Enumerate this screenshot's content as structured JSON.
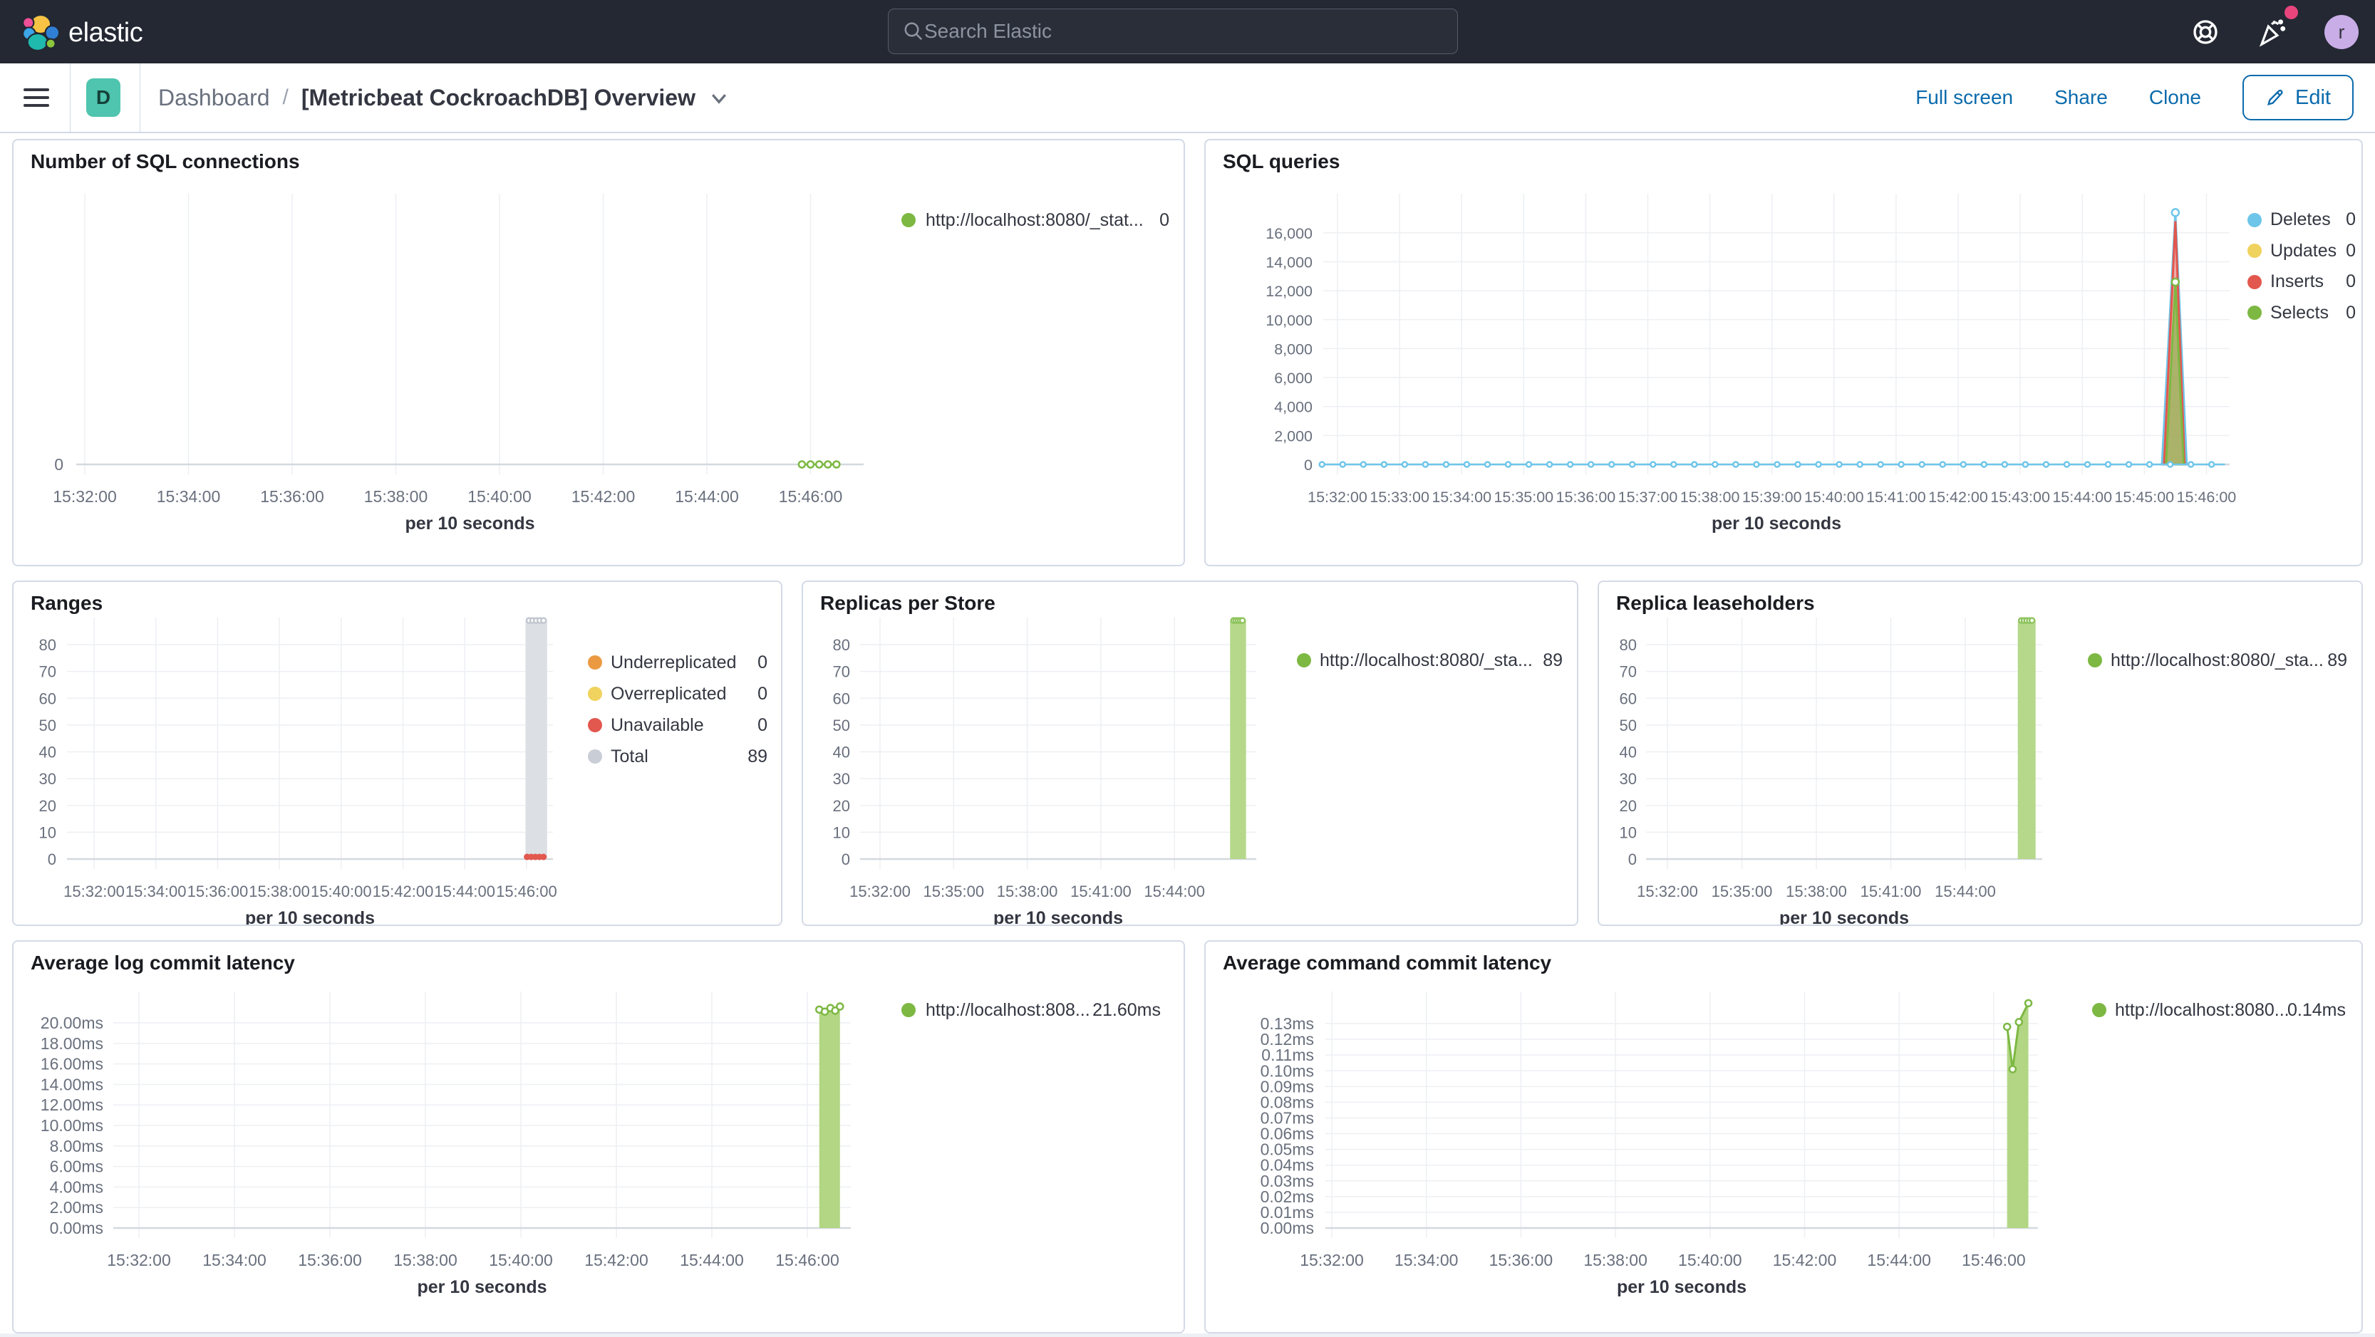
{
  "header": {
    "logo_text": "elastic",
    "search_placeholder": "Search Elastic",
    "avatar_initial": "r"
  },
  "toolbar": {
    "badge_letter": "D",
    "breadcrumb_root": "Dashboard",
    "breadcrumb_separator": "/",
    "title": "[Metricbeat CockroachDB] Overview",
    "actions": [
      "Full screen",
      "Share",
      "Clone"
    ],
    "edit_label": "Edit"
  },
  "colors": {
    "header_bg": "#232833",
    "panel_border": "#d3dae6",
    "link_blue": "#0b6bac",
    "badge_teal": "#4fc4ae",
    "notification_pink": "#e8457c",
    "avatar_purple": "#c9ade6",
    "series_green": "#7db843",
    "series_blue": "#6ec5ea",
    "series_red": "#e2574e",
    "series_yellow": "#f0d25e",
    "series_orange": "#eb9a42",
    "series_gray": "#c9cdd5"
  },
  "chart_data": [
    {
      "title": "Number of SQL connections",
      "type": "line",
      "x_axis_title": "per 10 seconds",
      "x_ticks": [
        "15:32:00",
        "15:34:00",
        "15:36:00",
        "15:38:00",
        "15:40:00",
        "15:42:00",
        "15:44:00",
        "15:46:00"
      ],
      "x_tick_step_s": 120,
      "y_plot_max": 1,
      "y_ticks": [
        [
          0,
          "0"
        ]
      ],
      "series": [
        {
          "name": "http://localhost:8080/_stat...",
          "color": "#7db843",
          "draw": "dotline",
          "points": [
            [
              830,
              0
            ],
            [
              840,
              0
            ],
            [
              850,
              0
            ],
            [
              860,
              0
            ],
            [
              870,
              0
            ]
          ]
        }
      ],
      "legend": [
        {
          "label": "http://localhost:8080/_stat...",
          "value": "0",
          "color": "#7db843"
        }
      ]
    },
    {
      "title": "SQL queries",
      "type": "line",
      "x_axis_title": "per 10 seconds",
      "x_ticks": [
        "15:32:00",
        "15:33:00",
        "15:34:00",
        "15:35:00",
        "15:36:00",
        "15:37:00",
        "15:38:00",
        "15:39:00",
        "15:40:00",
        "15:41:00",
        "15:42:00",
        "15:43:00",
        "15:44:00",
        "15:45:00",
        "15:46:00"
      ],
      "x_tick_step_s": 60,
      "y_plot_max": 18700,
      "y_ticks": [
        [
          0,
          "0"
        ],
        [
          2000,
          "2,000"
        ],
        [
          4000,
          "4,000"
        ],
        [
          6000,
          "6,000"
        ],
        [
          8000,
          "8,000"
        ],
        [
          10000,
          "10,000"
        ],
        [
          12000,
          "12,000"
        ],
        [
          14000,
          "14,000"
        ],
        [
          16000,
          "16,000"
        ]
      ],
      "series": [
        {
          "name": "Deletes",
          "color": "#6ec5ea",
          "draw": "spike",
          "fill": "none",
          "points": [
            [
              797,
              0
            ],
            [
              810,
              17400
            ],
            [
              821,
              0
            ]
          ],
          "markers": [
            [
              810,
              17400
            ]
          ]
        },
        {
          "name": "Inserts",
          "color": "#e2574e",
          "draw": "spike",
          "fill": "rgba(226,87,78,0.5)",
          "points": [
            [
              799,
              0
            ],
            [
              810,
              16800
            ],
            [
              819,
              0
            ]
          ]
        },
        {
          "name": "Selects",
          "color": "#7db843",
          "draw": "spike",
          "fill": "rgba(125,184,67,0.6)",
          "points": [
            [
              801,
              0
            ],
            [
              810,
              12600
            ],
            [
              818,
              0
            ]
          ],
          "markers": [
            [
              810,
              12600
            ]
          ]
        },
        {
          "name": "Deletes",
          "color": "#6ec5ea",
          "draw": "zeroline",
          "value": 0,
          "s_range": [
            -15,
            858
          ],
          "marker_step": 20
        }
      ],
      "legend": [
        {
          "label": "Deletes",
          "value": "0",
          "color": "#6ec5ea"
        },
        {
          "label": "Updates",
          "value": "0",
          "color": "#f0d25e"
        },
        {
          "label": "Inserts",
          "value": "0",
          "color": "#e2574e"
        },
        {
          "label": "Selects",
          "value": "0",
          "color": "#7db843"
        }
      ]
    },
    {
      "title": "Ranges",
      "type": "bar",
      "x_axis_title": "per 10 seconds",
      "x_ticks": [
        "15:32:00",
        "15:34:00",
        "15:36:00",
        "15:38:00",
        "15:40:00",
        "15:42:00",
        "15:44:00",
        "15:46:00"
      ],
      "x_tick_step_s": 120,
      "y_plot_max": 90.1,
      "y_ticks": [
        [
          0,
          "0"
        ],
        [
          10,
          "10"
        ],
        [
          20,
          "20"
        ],
        [
          30,
          "30"
        ],
        [
          40,
          "40"
        ],
        [
          50,
          "50"
        ],
        [
          60,
          "60"
        ],
        [
          70,
          "70"
        ],
        [
          80,
          "80"
        ]
      ],
      "series": [
        {
          "name": "Total",
          "color": "#c2c6ce",
          "draw": "bar",
          "fill": "#dcdfe4",
          "s_range": [
            838,
            880
          ],
          "value": 89,
          "caps": 5
        },
        {
          "name": "Unavailable",
          "color": "#e2574e",
          "draw": "dots",
          "points": [
            [
              841,
              0
            ],
            [
              849,
              0
            ],
            [
              857,
              0
            ],
            [
              865,
              0
            ],
            [
              873,
              0
            ]
          ]
        }
      ],
      "legend": [
        {
          "label": "Underreplicated",
          "value": "0",
          "color": "#eb9a42"
        },
        {
          "label": "Overreplicated",
          "value": "0",
          "color": "#f0d25e"
        },
        {
          "label": "Unavailable",
          "value": "0",
          "color": "#e2574e"
        },
        {
          "label": "Total",
          "value": "89",
          "color": "#c9cdd5"
        }
      ]
    },
    {
      "title": "Replicas per Store",
      "type": "bar",
      "x_axis_title": "per 10 seconds",
      "x_ticks": [
        "15:32:00",
        "15:35:00",
        "15:38:00",
        "15:41:00",
        "15:44:00"
      ],
      "x_tick_step_s": 180,
      "y_plot_max": 90.1,
      "y_ticks": [
        [
          0,
          "0"
        ],
        [
          10,
          "10"
        ],
        [
          20,
          "20"
        ],
        [
          30,
          "30"
        ],
        [
          40,
          "40"
        ],
        [
          50,
          "50"
        ],
        [
          60,
          "60"
        ],
        [
          70,
          "70"
        ],
        [
          80,
          "80"
        ]
      ],
      "series": [
        {
          "name": "http://localhost:8080/_sta...",
          "color": "#8fc45f",
          "draw": "bar",
          "fill": "#b5d88a",
          "s_range": [
            856,
            895
          ],
          "value": 89,
          "caps": 5
        }
      ],
      "legend": [
        {
          "label": "http://localhost:8080/_sta...",
          "value": "89",
          "color": "#7db843"
        }
      ]
    },
    {
      "title": "Replica leaseholders",
      "type": "bar",
      "x_axis_title": "per 10 seconds",
      "x_ticks": [
        "15:32:00",
        "15:35:00",
        "15:38:00",
        "15:41:00",
        "15:44:00"
      ],
      "x_tick_step_s": 180,
      "y_plot_max": 90.1,
      "y_ticks": [
        [
          0,
          "0"
        ],
        [
          10,
          "10"
        ],
        [
          20,
          "20"
        ],
        [
          30,
          "30"
        ],
        [
          40,
          "40"
        ],
        [
          50,
          "50"
        ],
        [
          60,
          "60"
        ],
        [
          70,
          "70"
        ],
        [
          80,
          "80"
        ]
      ],
      "series": [
        {
          "name": "http://localhost:8080/_sta...",
          "color": "#8fc45f",
          "draw": "bar",
          "fill": "#b5d88a",
          "s_range": [
            847,
            890
          ],
          "value": 89,
          "caps": 5
        }
      ],
      "legend": [
        {
          "label": "http://localhost:8080/_sta...",
          "value": "89",
          "color": "#7db843"
        }
      ]
    },
    {
      "title": "Average log commit latency",
      "type": "area",
      "x_axis_title": "per 10 seconds",
      "x_ticks": [
        "15:32:00",
        "15:34:00",
        "15:36:00",
        "15:38:00",
        "15:40:00",
        "15:42:00",
        "15:44:00",
        "15:46:00"
      ],
      "x_tick_step_s": 120,
      "y_plot_max": 23.06,
      "y_ticks": [
        [
          0,
          "0.00ms"
        ],
        [
          2,
          "2.00ms"
        ],
        [
          4,
          "4.00ms"
        ],
        [
          6,
          "6.00ms"
        ],
        [
          8,
          "8.00ms"
        ],
        [
          10,
          "10.00ms"
        ],
        [
          12,
          "12.00ms"
        ],
        [
          14,
          "14.00ms"
        ],
        [
          16,
          "16.00ms"
        ],
        [
          18,
          "18.00ms"
        ],
        [
          20,
          "20.00ms"
        ]
      ],
      "series": [
        {
          "name": "http://localhost:808...",
          "color": "#7db843",
          "draw": "area",
          "fill": "#b2d683",
          "points": [
            [
              855,
              21.3
            ],
            [
              862,
              21.1
            ],
            [
              869,
              21.45
            ],
            [
              875,
              21.2
            ],
            [
              881,
              21.6
            ]
          ]
        }
      ],
      "legend": [
        {
          "label": "http://localhost:808...",
          "value": "21.60ms",
          "color": "#7db843"
        }
      ]
    },
    {
      "title": "Average command commit latency",
      "type": "area",
      "x_axis_title": "per 10 seconds",
      "x_ticks": [
        "15:32:00",
        "15:34:00",
        "15:36:00",
        "15:38:00",
        "15:40:00",
        "15:42:00",
        "15:44:00",
        "15:46:00"
      ],
      "x_tick_step_s": 120,
      "y_plot_max": 0.1504,
      "y_ticks": [
        [
          0,
          "0.00ms"
        ],
        [
          0.01,
          "0.01ms"
        ],
        [
          0.02,
          "0.02ms"
        ],
        [
          0.03,
          "0.03ms"
        ],
        [
          0.04,
          "0.04ms"
        ],
        [
          0.05,
          "0.05ms"
        ],
        [
          0.06,
          "0.06ms"
        ],
        [
          0.07,
          "0.07ms"
        ],
        [
          0.08,
          "0.08ms"
        ],
        [
          0.09,
          "0.09ms"
        ],
        [
          0.1,
          "0.10ms"
        ],
        [
          0.11,
          "0.11ms"
        ],
        [
          0.12,
          "0.12ms"
        ],
        [
          0.13,
          "0.13ms"
        ]
      ],
      "series": [
        {
          "name": "http://localhost:8080...",
          "color": "#7db843",
          "draw": "area",
          "fill": "#b2d683",
          "points": [
            [
              857,
              0.128
            ],
            [
              864,
              0.101
            ],
            [
              872,
              0.131
            ],
            [
              884,
              0.143
            ]
          ]
        }
      ],
      "legend": [
        {
          "label": "http://localhost:8080...",
          "value": "0.14ms",
          "color": "#7db843"
        }
      ]
    }
  ]
}
